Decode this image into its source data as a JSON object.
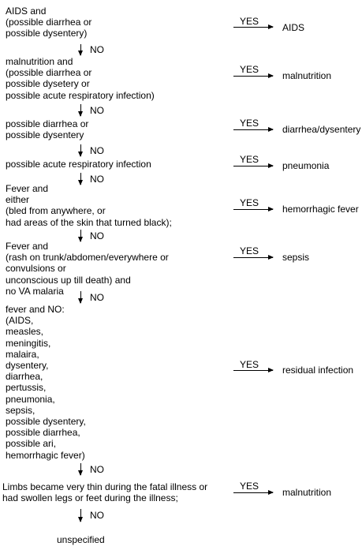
{
  "yes_label": "YES",
  "no_label": "NO",
  "rules": [
    {
      "condition": "AIDS and\n(possible diarrhea or\npossible dysentery)",
      "result": "AIDS"
    },
    {
      "condition": "malnutrition and\n(possible diarrhea or\npossible dysetery or\npossible acute respiratory infection)",
      "result": "malnutrition"
    },
    {
      "condition": "possible diarrhea or\npossible dysentery",
      "result": "diarrhea/dysentery"
    },
    {
      "condition": "possible acute respiratory infection",
      "result": "pneumonia"
    },
    {
      "condition": "Fever and\neither\n(bled from anywhere, or\nhad areas of the skin that turned black);",
      "result": "hemorrhagic fever"
    },
    {
      "condition": "Fever and\n(rash on trunk/abdomen/everywhere or\nconvulsions or\nunconscious up till death) and\nno VA malaria",
      "result": "sepsis"
    },
    {
      "condition": "fever and NO:\n(AIDS,\nmeasles,\nmeningitis,\nmalaira,\ndysentery,\ndiarrhea,\npertussis,\npneumonia,\nsepsis,\npossible dysentery,\npossible diarrhea,\npossible ari,\nhemorrhagic fever)",
      "result": "residual infection"
    },
    {
      "condition": "Limbs became very thin during the fatal illness or\nhad swollen legs or feet during the illness;",
      "result": "malnutrition"
    }
  ],
  "fallback": "unspecified"
}
